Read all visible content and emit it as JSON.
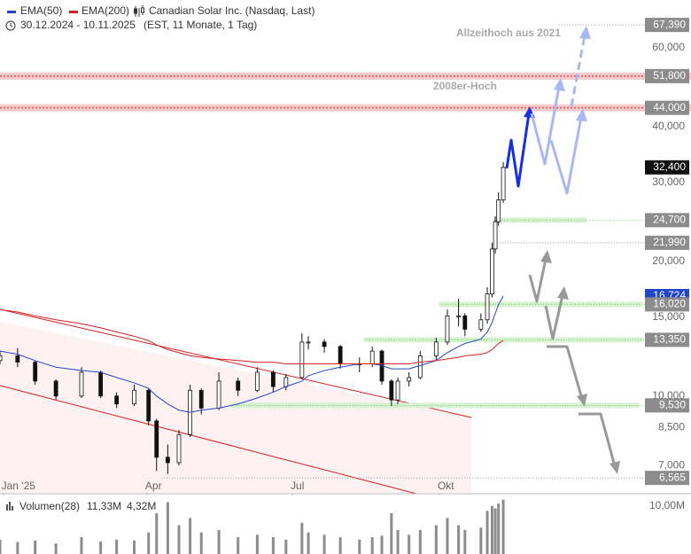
{
  "chart_data": {
    "type": "candlestick",
    "title": "Canadian Solar Inc. (Nasdaq, Last)",
    "subtitle": "30.12.2024 - 10.11.2025",
    "subtitle_note": "(EST, 11 Monate, 1 Tag)",
    "log_scale": true,
    "xlim": [
      "2024-12-30",
      "2026-02-05"
    ],
    "xticks": [
      {
        "value": "2025-01-01",
        "label": "Jan '25"
      },
      {
        "value": "2025-04-01",
        "label": "Apr"
      },
      {
        "value": "2025-07-01",
        "label": "Jul"
      },
      {
        "value": "2025-10-01",
        "label": "Okt"
      }
    ],
    "ylim": [
      6.08,
      76.6
    ],
    "yticks": [
      {
        "value": 60,
        "label": "60,000"
      },
      {
        "value": 40,
        "label": "40,000"
      },
      {
        "value": 30,
        "label": "30,000"
      },
      {
        "value": 20,
        "label": "20,000"
      },
      {
        "value": 15,
        "label": "15,000"
      },
      {
        "value": 10,
        "label": "10,000"
      },
      {
        "value": 8.5,
        "label": "8,500"
      },
      {
        "value": 7,
        "label": "7,000"
      }
    ],
    "ohlc": {
      "x": [
        "2024-12-30",
        "2025-01-10",
        "2025-01-21",
        "2025-02-03",
        "2025-02-19",
        "2025-03-03",
        "2025-03-13",
        "2025-03-24",
        "2025-04-02",
        "2025-04-07",
        "2025-04-14",
        "2025-04-21",
        "2025-04-28",
        "2025-05-05",
        "2025-05-16",
        "2025-05-28",
        "2025-06-09",
        "2025-06-19",
        "2025-06-27",
        "2025-07-07",
        "2025-07-11",
        "2025-07-21",
        "2025-07-31",
        "2025-08-12",
        "2025-08-20",
        "2025-08-26",
        "2025-09-01",
        "2025-09-05",
        "2025-09-12",
        "2025-09-19",
        "2025-09-29",
        "2025-10-06",
        "2025-10-13",
        "2025-10-17",
        "2025-10-27",
        "2025-10-31",
        "2025-11-03",
        "2025-11-05",
        "2025-11-07",
        "2025-11-10"
      ],
      "open": [
        12.0,
        12.3,
        11.9,
        10.8,
        10.0,
        11.3,
        10.0,
        9.6,
        10.3,
        8.8,
        7.3,
        7.1,
        8.2,
        10.3,
        9.4,
        10.8,
        10.3,
        11.3,
        10.5,
        11.0,
        13.2,
        13.2,
        12.9,
        11.8,
        11.8,
        12.6,
        10.8,
        9.8,
        10.8,
        11.0,
        12.3,
        13.2,
        15.1,
        15.1,
        14.1,
        14.8,
        16.9,
        21.3,
        24.5,
        27.4
      ],
      "high": [
        12.6,
        12.8,
        12.0,
        10.9,
        11.6,
        11.4,
        10.2,
        10.6,
        10.4,
        8.9,
        7.8,
        8.4,
        10.6,
        10.4,
        11.3,
        11.0,
        11.6,
        11.4,
        11.2,
        13.8,
        13.6,
        13.4,
        13.0,
        12.2,
        12.9,
        12.7,
        10.9,
        11.0,
        11.3,
        12.6,
        13.5,
        15.6,
        16.5,
        15.3,
        15.3,
        17.5,
        22.0,
        25.2,
        28.5,
        33.3
      ],
      "low": [
        11.8,
        11.6,
        10.6,
        9.8,
        9.9,
        9.9,
        9.4,
        9.5,
        8.6,
        6.8,
        6.7,
        7.0,
        8.1,
        9.1,
        9.3,
        10.0,
        10.2,
        10.2,
        10.3,
        10.9,
        12.7,
        12.5,
        11.5,
        11.3,
        11.6,
        10.6,
        9.5,
        9.6,
        10.5,
        10.9,
        12.0,
        13.0,
        14.3,
        13.6,
        13.9,
        14.5,
        16.6,
        20.8,
        24.0,
        27.0
      ],
      "close": [
        12.3,
        11.9,
        10.8,
        10.0,
        11.3,
        10.0,
        9.6,
        10.3,
        8.8,
        7.3,
        7.1,
        8.2,
        10.3,
        9.4,
        10.8,
        10.3,
        11.3,
        10.5,
        11.0,
        13.2,
        13.2,
        12.9,
        11.8,
        11.8,
        12.6,
        10.8,
        9.8,
        10.8,
        11.0,
        12.3,
        13.2,
        15.1,
        15.1,
        14.1,
        14.8,
        16.9,
        21.3,
        24.5,
        27.4,
        32.4
      ],
      "last_label": "32,400"
    },
    "series": [
      {
        "name": "EMA(50)",
        "color": "#2346c8",
        "values": [
          12.6,
          12.4,
          12.0,
          11.6,
          11.4,
          11.3,
          11.0,
          10.7,
          10.4,
          10.0,
          9.6,
          9.3,
          9.2,
          9.3,
          9.4,
          9.6,
          9.9,
          10.2,
          10.5,
          10.8,
          11.1,
          11.4,
          11.6,
          11.8,
          11.8,
          11.7,
          11.5,
          11.5,
          11.5,
          11.7,
          12.0,
          12.5,
          12.9,
          13.1,
          13.4,
          13.9,
          14.6,
          15.3,
          16.0,
          16.724
        ],
        "last_label": "16,724"
      },
      {
        "name": "EMA(200)",
        "color": "#d42020",
        "values": [
          15.6,
          15.4,
          15.1,
          14.8,
          14.5,
          14.2,
          13.9,
          13.6,
          13.3,
          13.0,
          12.7,
          12.5,
          12.3,
          12.2,
          12.1,
          12.0,
          11.9,
          11.9,
          11.8,
          11.8,
          11.8,
          11.8,
          11.8,
          11.8,
          11.8,
          11.8,
          11.8,
          11.8,
          11.8,
          11.9,
          12.0,
          12.1,
          12.2,
          12.3,
          12.4,
          12.5,
          12.7,
          12.9,
          13.1,
          13.3
        ]
      }
    ],
    "levels": [
      {
        "value": 67.39,
        "label": "67,390",
        "line": "dotted",
        "from": "2025-12-15"
      },
      {
        "value": 51.8,
        "label": "51,800",
        "line": "band"
      },
      {
        "value": 44,
        "label": "44,000",
        "line": "band"
      },
      {
        "value": 24.7,
        "label": "24,700",
        "line": "dotted",
        "from": "2025-11-04",
        "zone": [
          "2025-11-04",
          "2026-01-01"
        ]
      },
      {
        "value": 21.99,
        "label": "21,990",
        "line": "dotted",
        "from": "2025-11-06"
      },
      {
        "value": 16.02,
        "label": "16,020",
        "line": "dotted",
        "from": "2025-10-01",
        "zone": [
          "2025-10-01",
          "2026-02-05"
        ]
      },
      {
        "value": 13.35,
        "label": "13,350",
        "line": "dotted",
        "from": "2025-08-15",
        "zone": [
          "2025-08-15",
          "2026-02-05"
        ]
      },
      {
        "value": 9.53,
        "label": "9,530",
        "line": "dotted",
        "from": "2025-05-23",
        "zone": [
          "2025-05-23",
          "2026-02-03"
        ]
      },
      {
        "value": 6.565,
        "label": "6,565",
        "line": "dotted",
        "from": "2025-04-10"
      }
    ],
    "annotations": [
      "Allzeithoch aus 2021",
      "2008er-Hoch"
    ],
    "volume": {
      "name": "Volumen(28)",
      "color": "#8c8c8c",
      "values": [
        3,
        2.5,
        2.8,
        2.2,
        3.5,
        2.6,
        3.0,
        2.8,
        4.5,
        8.5,
        10.8,
        6,
        7.5,
        4.5,
        5,
        3.5,
        4,
        3.5,
        3,
        6.5,
        4.5,
        4,
        3.5,
        3,
        3.5,
        3.8,
        8.5,
        5,
        4,
        5,
        6,
        7.5,
        6,
        5,
        5.5,
        9,
        10,
        9.5,
        10.5,
        11.33
      ],
      "last_label": "11,33M",
      "average": {
        "value": 4.32,
        "label": "4,32M",
        "color": "#e8a317"
      },
      "ylim": [
        0,
        12
      ],
      "yticks": [
        {
          "value": 10,
          "label": "10,00M"
        }
      ]
    }
  }
}
